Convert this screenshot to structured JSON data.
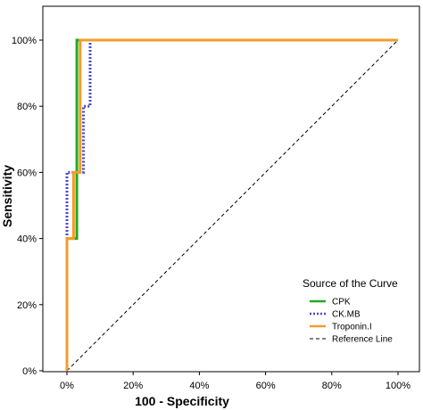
{
  "chart_data": {
    "type": "line",
    "xlabel": "100 - Specificity",
    "ylabel": "Sensitivity",
    "xlim": [
      0,
      100
    ],
    "ylim": [
      0,
      100
    ],
    "x_ticks": [
      "0%",
      "20%",
      "40%",
      "60%",
      "80%",
      "100%"
    ],
    "y_ticks": [
      "0%",
      "20%",
      "40%",
      "60%",
      "80%",
      "100%"
    ],
    "grid": false,
    "legend": {
      "title": "Source of the Curve",
      "placement": "bottom-right"
    },
    "series": [
      {
        "name": "CPK",
        "color": "#22aa22",
        "style": "solid",
        "points": [
          [
            0,
            0
          ],
          [
            0,
            40
          ],
          [
            3,
            40
          ],
          [
            3,
            60
          ],
          [
            3,
            100
          ],
          [
            100,
            100
          ]
        ]
      },
      {
        "name": "CK.MB",
        "color": "#4848c8",
        "style": "dotted",
        "points": [
          [
            0,
            0
          ],
          [
            0,
            60
          ],
          [
            2,
            60
          ],
          [
            2,
            60
          ],
          [
            5,
            60
          ],
          [
            5,
            80
          ],
          [
            7,
            80
          ],
          [
            7,
            100
          ],
          [
            100,
            100
          ]
        ]
      },
      {
        "name": "Troponin.I",
        "color": "#f39c2a",
        "style": "solid",
        "points": [
          [
            0,
            0
          ],
          [
            0,
            40
          ],
          [
            2,
            40
          ],
          [
            2,
            60
          ],
          [
            4,
            60
          ],
          [
            4,
            100
          ],
          [
            100,
            100
          ]
        ]
      },
      {
        "name": "Reference Line",
        "color": "#000000",
        "style": "dashed",
        "points": [
          [
            0,
            0
          ],
          [
            100,
            100
          ]
        ]
      }
    ]
  }
}
